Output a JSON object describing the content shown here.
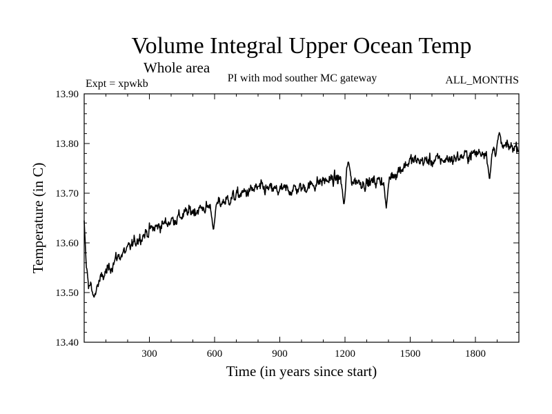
{
  "chart_data": {
    "type": "line",
    "title": "Volume Integral Upper Ocean Temp",
    "subtitle": "Whole area",
    "left_label": "Expt = xpwkb",
    "center_label": "PI with mod souther MC gateway",
    "right_label": "ALL_MONTHS",
    "xlabel": "Time (in years since start)",
    "ylabel": "Temperature (in C)",
    "xlim": [
      0,
      2000
    ],
    "ylim": [
      13.4,
      13.9
    ],
    "x_ticks": [
      300,
      600,
      900,
      1200,
      1500,
      1800
    ],
    "x_tick_labels": [
      "300",
      "600",
      "900",
      "1200",
      "1500",
      "1800"
    ],
    "y_ticks": [
      13.4,
      13.5,
      13.6,
      13.7,
      13.8,
      13.9
    ],
    "y_tick_labels": [
      "13.40",
      "13.50",
      "13.60",
      "13.70",
      "13.80",
      "13.90"
    ],
    "grid": false,
    "line_color": "#000000",
    "trend_anchors": {
      "x": [
        0,
        10,
        20,
        40,
        60,
        100,
        150,
        200,
        250,
        300,
        400,
        500,
        600,
        700,
        800,
        900,
        1000,
        1100,
        1200,
        1300,
        1400,
        1500,
        1600,
        1700,
        1800,
        1900,
        2000
      ],
      "y": [
        13.645,
        13.55,
        13.52,
        13.505,
        13.515,
        13.54,
        13.57,
        13.585,
        13.61,
        13.625,
        13.645,
        13.665,
        13.675,
        13.695,
        13.71,
        13.705,
        13.71,
        13.725,
        13.73,
        13.72,
        13.73,
        13.765,
        13.765,
        13.77,
        13.78,
        13.79,
        13.795
      ]
    },
    "variability_amplitude": 0.012,
    "noted_extremes": [
      {
        "x": 45,
        "y": 13.49
      },
      {
        "x": 595,
        "y": 13.625
      },
      {
        "x": 1195,
        "y": 13.675
      },
      {
        "x": 1215,
        "y": 13.765
      },
      {
        "x": 1390,
        "y": 13.67
      },
      {
        "x": 1865,
        "y": 13.725
      },
      {
        "x": 1910,
        "y": 13.822
      }
    ]
  }
}
